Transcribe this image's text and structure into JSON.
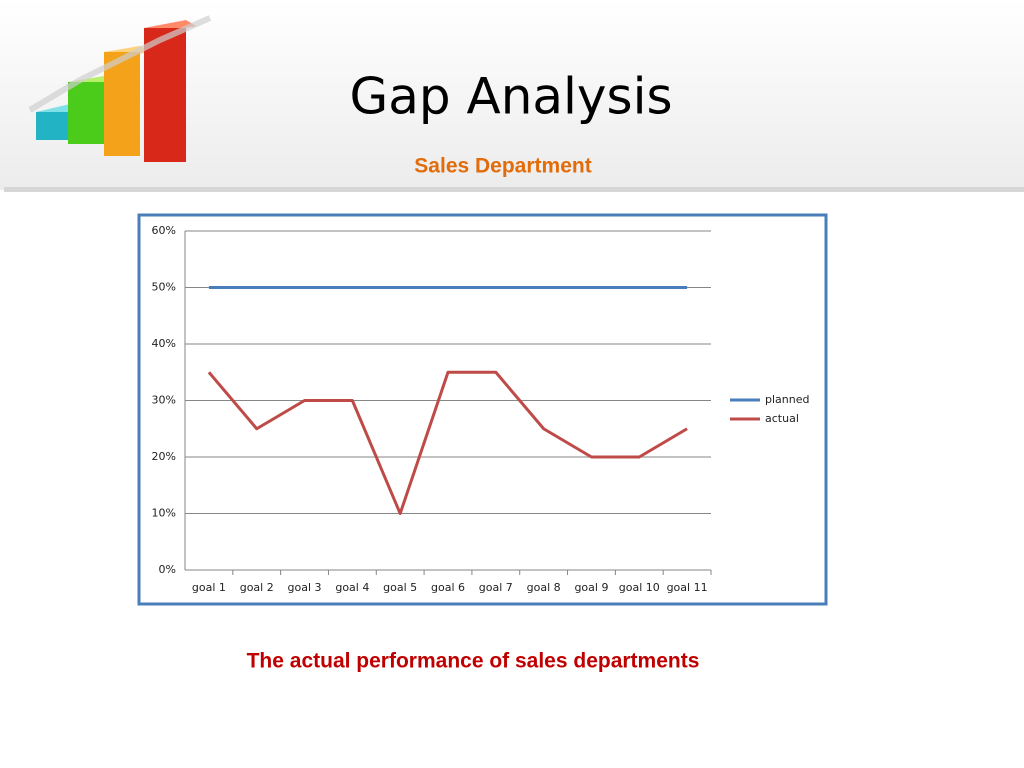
{
  "chart_data": {
    "type": "line",
    "title": "Gap Analysis",
    "subtitle": "Sales Department",
    "annotations": [
      "The actual performance of sales departments"
    ],
    "categories": [
      "goal 1",
      "goal 2",
      "goal 3",
      "goal 4",
      "goal 5",
      "goal 6",
      "goal 7",
      "goal 8",
      "goal 9",
      "goal 10",
      "goal 11"
    ],
    "series": [
      {
        "name": "planned",
        "color": "#4a7ebb",
        "values": [
          50,
          50,
          50,
          50,
          50,
          50,
          50,
          50,
          50,
          50,
          50
        ]
      },
      {
        "name": "actual",
        "color": "#be4b48",
        "values": [
          35,
          25,
          30,
          30,
          10,
          35,
          35,
          25,
          20,
          20,
          25
        ]
      }
    ],
    "ylim": [
      0,
      60
    ],
    "yticks": [
      {
        "value": 0,
        "label": "0%"
      },
      {
        "value": 10,
        "label": "10%"
      },
      {
        "value": 20,
        "label": "20%"
      },
      {
        "value": 30,
        "label": "30%"
      },
      {
        "value": 40,
        "label": "40%"
      },
      {
        "value": 50,
        "label": "50%"
      },
      {
        "value": 60,
        "label": "60%"
      }
    ],
    "grid": true,
    "legend": "right"
  }
}
